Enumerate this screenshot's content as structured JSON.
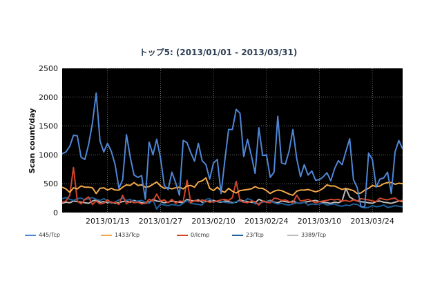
{
  "chart_data": {
    "type": "line",
    "title": "トップ5: (2013/01/01 - 2013/03/31)",
    "ylabel": "Scan count/day",
    "xlabel": "",
    "ylim": [
      0,
      2500
    ],
    "yticks": [
      0,
      500,
      1000,
      1500,
      2000,
      2500
    ],
    "x_start": "2013-01-01",
    "xtick_labels": [
      "2013/01/13",
      "2013/01/27",
      "2013/02/10",
      "2013/02/24",
      "2013/03/10",
      "2013/03/24"
    ],
    "xtick_days": [
      12,
      26,
      40,
      54,
      68,
      82
    ],
    "grid": true,
    "background": "#000000",
    "legend_position": "bottom",
    "series": [
      {
        "name": "445/Tcp",
        "color": "#4f86d6",
        "values": [
          1020,
          1050,
          1150,
          1340,
          1330,
          960,
          920,
          1180,
          1550,
          2070,
          1240,
          1050,
          1200,
          1060,
          830,
          420,
          570,
          1350,
          960,
          650,
          610,
          640,
          230,
          1220,
          1000,
          1270,
          950,
          470,
          400,
          700,
          520,
          300,
          1250,
          1210,
          1040,
          890,
          1200,
          900,
          830,
          580,
          860,
          920,
          330,
          900,
          1440,
          1440,
          1790,
          1720,
          970,
          1270,
          990,
          680,
          1470,
          990,
          1000,
          610,
          700,
          1670,
          860,
          840,
          1070,
          1440,
          940,
          620,
          830,
          650,
          720,
          560,
          570,
          620,
          690,
          550,
          760,
          900,
          830,
          1060,
          1280,
          570,
          430,
          100,
          100,
          1030,
          920,
          440,
          580,
          600,
          700,
          330,
          1050,
          1250,
          1100
        ]
      },
      {
        "name": "1433/Tcp",
        "color": "#f4a94a",
        "values": [
          440,
          410,
          350,
          430,
          410,
          460,
          440,
          440,
          430,
          330,
          420,
          430,
          390,
          420,
          390,
          390,
          440,
          480,
          470,
          520,
          470,
          480,
          440,
          450,
          490,
          530,
          460,
          420,
          430,
          410,
          430,
          440,
          410,
          460,
          470,
          440,
          530,
          550,
          600,
          420,
          380,
          440,
          380,
          350,
          420,
          370,
          340,
          380,
          390,
          400,
          410,
          450,
          420,
          420,
          380,
          330,
          370,
          390,
          380,
          350,
          320,
          300,
          370,
          390,
          390,
          400,
          380,
          360,
          380,
          420,
          480,
          460,
          460,
          430,
          400,
          420,
          400,
          380,
          330,
          340,
          390,
          420,
          470,
          450,
          460,
          500,
          520,
          520,
          490,
          510,
          500
        ]
      },
      {
        "name": "0/Icmp",
        "color": "#d2462a",
        "values": [
          180,
          200,
          300,
          780,
          200,
          150,
          230,
          270,
          140,
          200,
          150,
          160,
          220,
          170,
          180,
          140,
          300,
          150,
          200,
          170,
          180,
          150,
          160,
          230,
          200,
          320,
          200,
          220,
          170,
          230,
          160,
          200,
          190,
          560,
          170,
          210,
          190,
          220,
          200,
          180,
          190,
          200,
          220,
          230,
          210,
          260,
          540,
          210,
          180,
          170,
          200,
          190,
          130,
          200,
          180,
          170,
          250,
          240,
          210,
          220,
          190,
          170,
          300,
          200,
          210,
          230,
          200,
          170,
          190,
          200,
          210,
          230,
          220,
          230,
          200,
          210,
          190,
          220,
          200,
          240,
          230,
          220,
          200,
          190,
          250,
          230,
          220,
          240,
          250,
          200,
          210
        ]
      },
      {
        "name": "23/Tcp",
        "color": "#1f5f9a",
        "values": [
          240,
          260,
          230,
          210,
          240,
          250,
          220,
          240,
          260,
          230,
          210,
          240,
          200,
          160,
          180,
          220,
          250,
          210,
          230,
          190,
          200,
          210,
          180,
          160,
          220,
          60,
          150,
          130,
          120,
          140,
          130,
          120,
          160,
          210,
          160,
          150,
          140,
          130,
          230,
          240,
          180,
          200,
          190,
          180,
          170,
          160,
          190,
          200,
          180,
          240,
          220,
          150,
          160,
          180,
          190,
          200,
          170,
          150,
          160,
          140,
          130,
          150,
          170,
          160,
          180,
          130,
          150,
          140,
          150,
          160,
          130,
          140,
          150,
          120,
          110,
          130,
          120,
          150,
          140,
          100,
          80,
          90,
          120,
          100,
          110,
          130,
          90,
          100,
          120,
          110,
          100
        ]
      },
      {
        "name": "3389/Tcp",
        "color": "#bdbdbd",
        "values": [
          160,
          180,
          170,
          200,
          190,
          180,
          170,
          160,
          200,
          220,
          180,
          190,
          170,
          180,
          160,
          170,
          190,
          200,
          180,
          210,
          190,
          170,
          160,
          180,
          230,
          200,
          190,
          170,
          180,
          200,
          190,
          180,
          170,
          230,
          210,
          200,
          220,
          180,
          190,
          200,
          210,
          190,
          180,
          200,
          190,
          170,
          180,
          220,
          200,
          190,
          180,
          170,
          230,
          200,
          190,
          210,
          180,
          170,
          200,
          190,
          180,
          200,
          170,
          160,
          180,
          190,
          200,
          210,
          190,
          180,
          170,
          160,
          180,
          170,
          200,
          420,
          270,
          230,
          200,
          190,
          180,
          170,
          160,
          190,
          200,
          180,
          170,
          160,
          180,
          200,
          190
        ]
      }
    ]
  }
}
